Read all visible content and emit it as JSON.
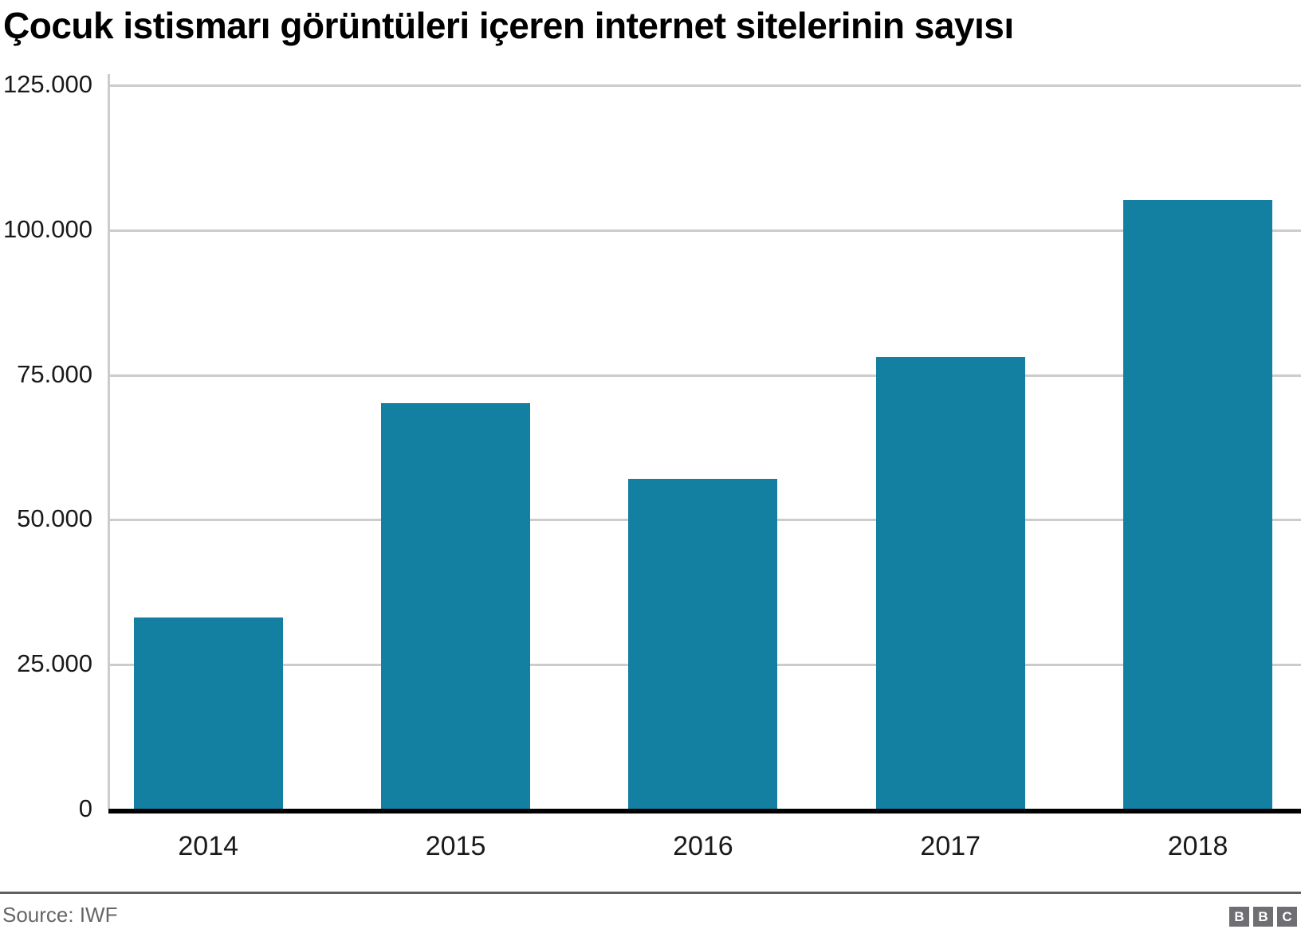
{
  "title": "Çocuk istismarı görüntüleri içeren internet sitelerinin sayısı",
  "source": "Source: IWF",
  "logo": {
    "letters": [
      "B",
      "B",
      "C"
    ]
  },
  "colors": {
    "bar": "#1380a1",
    "gridline": "#cccccc",
    "baseline": "#000000",
    "divider": "#606060",
    "source_text": "#666666",
    "logo_block": "#6e6e73"
  },
  "chart_data": {
    "type": "bar",
    "title": "Çocuk istismarı görüntüleri içeren internet sitelerinin sayısı",
    "categories": [
      "2014",
      "2015",
      "2016",
      "2017",
      "2018"
    ],
    "values": [
      33000,
      70000,
      57000,
      78000,
      105000
    ],
    "xlabel": "",
    "ylabel": "",
    "ylim": [
      0,
      125000
    ],
    "yticks": [
      0,
      25000,
      50000,
      75000,
      100000,
      125000
    ],
    "ytick_labels": [
      "0",
      "25.000",
      "50.000",
      "75.000",
      "100.000",
      "125.000"
    ],
    "grid": "horizontal",
    "legend": "none",
    "bar_color": "#1380a1",
    "source_label": "Source: IWF"
  }
}
